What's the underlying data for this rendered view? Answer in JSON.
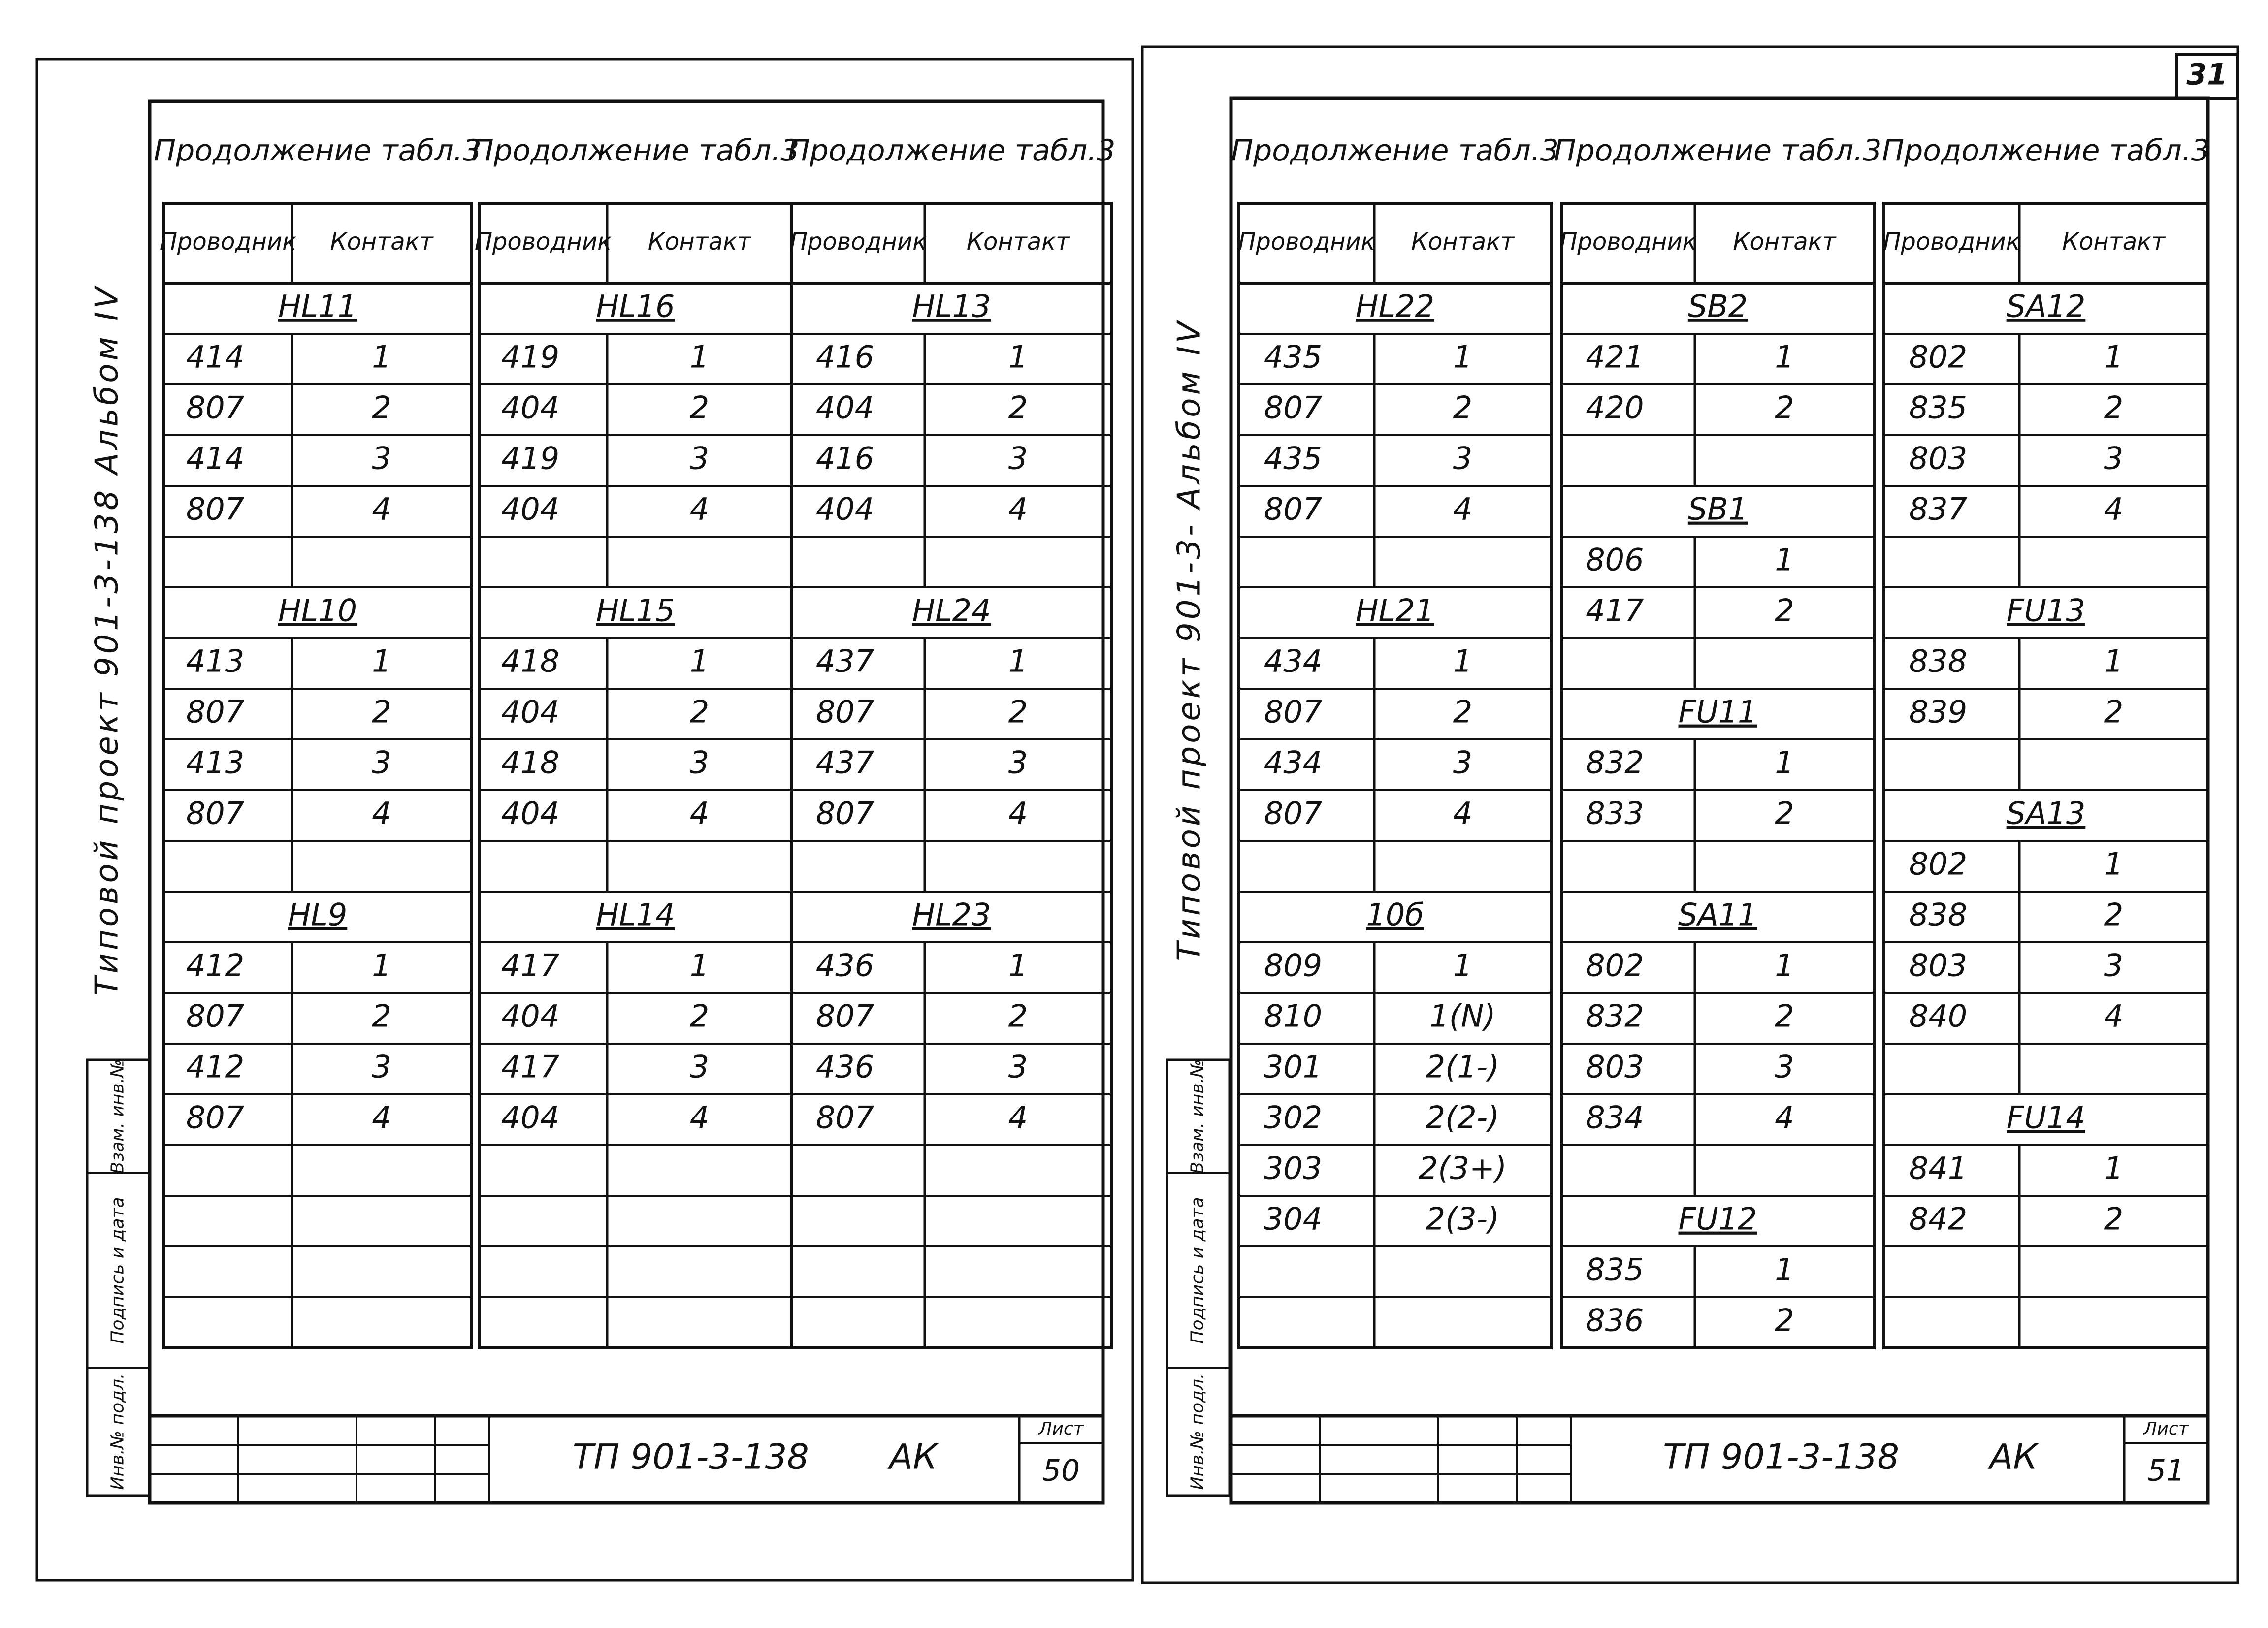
{
  "pages": [
    {
      "side_text": "Типовой проект 901-3-138 Альбом IV",
      "stamp": [
        "Инв.№ подл.",
        "Подпись и дата",
        "Взам. инв.№"
      ],
      "tables": [
        {
          "title": "Продолжение табл.3",
          "headers": [
            "Проводник",
            "Контакт"
          ],
          "rows": [
            {
              "group": "HL11"
            },
            [
              "414",
              "1"
            ],
            [
              "807",
              "2"
            ],
            [
              "414",
              "3"
            ],
            [
              "807",
              "4"
            ],
            null,
            {
              "group": "HL10"
            },
            [
              "413",
              "1"
            ],
            [
              "807",
              "2"
            ],
            [
              "413",
              "3"
            ],
            [
              "807",
              "4"
            ],
            null,
            {
              "group": "HL9"
            },
            [
              "412",
              "1"
            ],
            [
              "807",
              "2"
            ],
            [
              "412",
              "3"
            ],
            [
              "807",
              "4"
            ],
            null,
            null,
            null,
            null
          ]
        },
        {
          "title": "Продолжение табл.3",
          "headers": [
            "Проводник",
            "Контакт"
          ],
          "rows": [
            {
              "group": "HL16"
            },
            [
              "419",
              "1"
            ],
            [
              "404",
              "2"
            ],
            [
              "419",
              "3"
            ],
            [
              "404",
              "4"
            ],
            null,
            {
              "group": "HL15"
            },
            [
              "418",
              "1"
            ],
            [
              "404",
              "2"
            ],
            [
              "418",
              "3"
            ],
            [
              "404",
              "4"
            ],
            null,
            {
              "group": "HL14"
            },
            [
              "417",
              "1"
            ],
            [
              "404",
              "2"
            ],
            [
              "417",
              "3"
            ],
            [
              "404",
              "4"
            ],
            null,
            null,
            null,
            null
          ]
        },
        {
          "title": "Продолжение табл.3",
          "headers": [
            "Проводник",
            "Контакт"
          ],
          "rows": [
            {
              "group": "HL13"
            },
            [
              "416",
              "1"
            ],
            [
              "404",
              "2"
            ],
            [
              "416",
              "3"
            ],
            [
              "404",
              "4"
            ],
            null,
            {
              "group": "HL24"
            },
            [
              "437",
              "1"
            ],
            [
              "807",
              "2"
            ],
            [
              "437",
              "3"
            ],
            [
              "807",
              "4"
            ],
            null,
            {
              "group": "HL23"
            },
            [
              "436",
              "1"
            ],
            [
              "807",
              "2"
            ],
            [
              "436",
              "3"
            ],
            [
              "807",
              "4"
            ],
            null,
            null,
            null,
            null
          ]
        }
      ],
      "title_block": {
        "code": "ТП 901-3-138",
        "mark": "АК",
        "sheet_label": "Лист",
        "sheet": "50"
      }
    },
    {
      "page_number": "31",
      "side_text": "Типовой проект 901-3- Альбом IV",
      "stamp": [
        "Инв.№ подл.",
        "Подпись и дата",
        "Взам. инв.№"
      ],
      "tables": [
        {
          "title": "Продолжение табл.3",
          "headers": [
            "Проводник",
            "Контакт"
          ],
          "rows": [
            {
              "group": "HL22"
            },
            [
              "435",
              "1"
            ],
            [
              "807",
              "2"
            ],
            [
              "435",
              "3"
            ],
            [
              "807",
              "4"
            ],
            null,
            {
              "group": "HL21"
            },
            [
              "434",
              "1"
            ],
            [
              "807",
              "2"
            ],
            [
              "434",
              "3"
            ],
            [
              "807",
              "4"
            ],
            null,
            {
              "group": "10б"
            },
            [
              "809",
              "1"
            ],
            [
              "810",
              "1(N)"
            ],
            [
              "301",
              "2(1-)"
            ],
            [
              "302",
              "2(2-)"
            ],
            [
              "303",
              "2(3+)"
            ],
            [
              "304",
              "2(3-)"
            ],
            null,
            null
          ]
        },
        {
          "title": "Продолжение табл.3",
          "headers": [
            "Проводник",
            "Контакт"
          ],
          "rows": [
            {
              "group": "SB2"
            },
            [
              "421",
              "1"
            ],
            [
              "420",
              "2"
            ],
            null,
            {
              "group": "SB1"
            },
            [
              "806",
              "1"
            ],
            [
              "417",
              "2"
            ],
            null,
            {
              "group": "FU11"
            },
            [
              "832",
              "1"
            ],
            [
              "833",
              "2"
            ],
            null,
            {
              "group": "SA11"
            },
            [
              "802",
              "1"
            ],
            [
              "832",
              "2"
            ],
            [
              "803",
              "3"
            ],
            [
              "834",
              "4"
            ],
            null,
            {
              "group": "FU12"
            },
            [
              "835",
              "1"
            ],
            [
              "836",
              "2"
            ]
          ]
        },
        {
          "title": "Продолжение табл.3",
          "headers": [
            "Проводник",
            "Контакт"
          ],
          "rows": [
            {
              "group": "SA12"
            },
            [
              "802",
              "1"
            ],
            [
              "835",
              "2"
            ],
            [
              "803",
              "3"
            ],
            [
              "837",
              "4"
            ],
            null,
            {
              "group": "FU13"
            },
            [
              "838",
              "1"
            ],
            [
              "839",
              "2"
            ],
            null,
            {
              "group": "SA13"
            },
            [
              "802",
              "1"
            ],
            [
              "838",
              "2"
            ],
            [
              "803",
              "3"
            ],
            [
              "840",
              "4"
            ],
            null,
            {
              "group": "FU14"
            },
            [
              "841",
              "1"
            ],
            [
              "842",
              "2"
            ],
            null,
            null
          ]
        }
      ],
      "title_block": {
        "code": "ТП 901-3-138",
        "mark": "АК",
        "sheet_label": "Лист",
        "sheet": "51"
      }
    }
  ]
}
